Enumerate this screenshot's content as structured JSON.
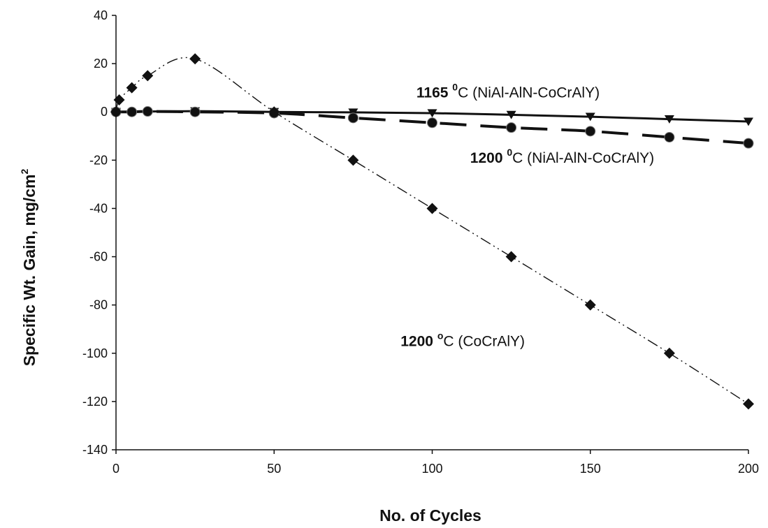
{
  "chart_data": {
    "type": "line",
    "xlabel": "No. of Cycles",
    "ylabel": "Specific Wt. Gain, mg/cm",
    "ylabel_superscript": "2",
    "xlim": [
      0,
      200
    ],
    "ylim": [
      -140,
      40
    ],
    "x_ticks": [
      0,
      50,
      100,
      150,
      200
    ],
    "y_ticks": [
      40,
      20,
      0,
      -20,
      -40,
      -60,
      -80,
      -100,
      -120,
      -140
    ],
    "grid": false,
    "series": [
      {
        "marker": "triangle-down",
        "color": "#111111",
        "line_style": "solid",
        "points": [
          [
            0,
            0
          ],
          [
            25,
            0.3
          ],
          [
            50,
            0
          ],
          [
            75,
            -0.2
          ],
          [
            100,
            -0.5
          ],
          [
            125,
            -1.2
          ],
          [
            150,
            -2
          ],
          [
            175,
            -3
          ],
          [
            200,
            -4
          ]
        ]
      },
      {
        "marker": "circle",
        "color": "#111111",
        "line_style": "dashed",
        "points": [
          [
            0,
            0
          ],
          [
            5,
            0
          ],
          [
            10,
            0.2
          ],
          [
            25,
            0
          ],
          [
            50,
            -0.5
          ],
          [
            75,
            -2.5
          ],
          [
            100,
            -4.5
          ],
          [
            125,
            -6.5
          ],
          [
            150,
            -8
          ],
          [
            175,
            -10.5
          ],
          [
            200,
            -13
          ]
        ]
      },
      {
        "marker": "diamond",
        "color": "#111111",
        "line_style": "dash-dot-dot",
        "points": [
          [
            0,
            0
          ],
          [
            1,
            5
          ],
          [
            5,
            10
          ],
          [
            10,
            15
          ],
          [
            25,
            22
          ],
          [
            50,
            0
          ],
          [
            75,
            -20
          ],
          [
            100,
            -40
          ],
          [
            125,
            -60
          ],
          [
            150,
            -80
          ],
          [
            175,
            -100
          ],
          [
            200,
            -121
          ]
        ]
      }
    ],
    "annotations": [
      {
        "label": "1165",
        "sup": "0",
        "suffix": "C (NiAl-AlN-CoCrAlY)",
        "x": 95,
        "y": 6
      },
      {
        "label": "1200",
        "sup": "0",
        "suffix": "C (NiAl-AlN-CoCrAlY)",
        "x": 112,
        "y": -21
      },
      {
        "label": "1200",
        "sup": "o",
        "suffix": "C (CoCrAlY)",
        "x": 90,
        "y": -97
      }
    ]
  }
}
